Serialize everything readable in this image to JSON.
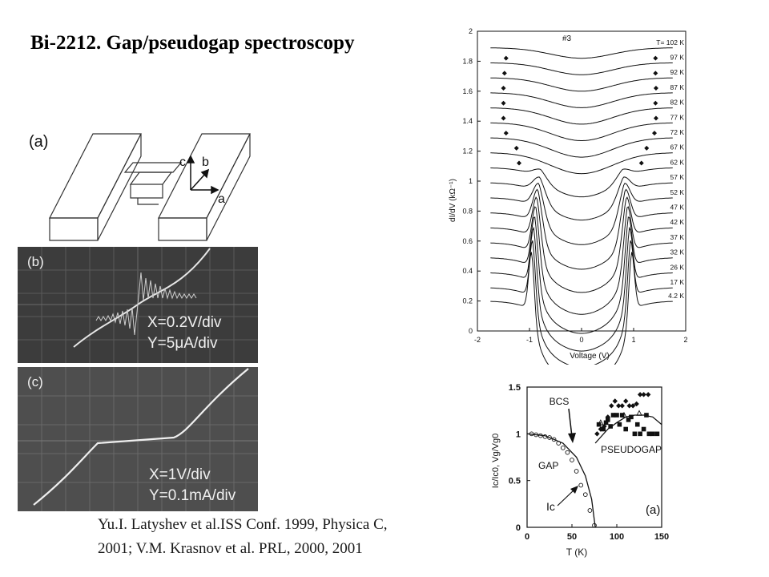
{
  "slide": {
    "title": "Bi-2212.  Gap/pseudogap spectroscopy",
    "citation_line1": "Yu.I. Latyshev et al.ISS Conf. 1999, Physica C,",
    "citation_line2": "2001; V.M. Krasnov et al. PRL, 2000, 2001"
  },
  "panel_a": {
    "label": "(a)",
    "axes": {
      "c": "c",
      "b": "b",
      "a": "a"
    }
  },
  "panel_b": {
    "label": "(b)",
    "scale_x": "X=0.2V/div",
    "scale_y": "Y=5μA/div"
  },
  "panel_c": {
    "label": "(c)",
    "scale_x": "X=1V/div",
    "scale_y": "Y=0.1mA/div"
  },
  "chart_data": [
    {
      "type": "line",
      "annotation": "#3",
      "xlabel": "Voltage (V)",
      "ylabel": "dI/dV (kΩ⁻¹)",
      "xlim": [
        -2,
        2
      ],
      "ylim": [
        0,
        2
      ],
      "xticks": [
        "-2",
        "-1",
        "0",
        "1",
        "2"
      ],
      "yticks": [
        "0",
        "0.2",
        "0.4",
        "0.6",
        "0.8",
        "1",
        "1.2",
        "1.4",
        "1.6",
        "1.8",
        "2"
      ],
      "grid": false,
      "series_labels": [
        "T= 102 K",
        "97 K",
        "92 K",
        "87 K",
        "82 K",
        "77 K",
        "72 K",
        "67 K",
        "62 K",
        "57 K",
        "52 K",
        "47 K",
        "42 K",
        "37 K",
        "32 K",
        "26 K",
        "17 K",
        "4.2 K"
      ],
      "series_temperatures_K": [
        102,
        97,
        92,
        87,
        82,
        77,
        72,
        67,
        62,
        57,
        52,
        47,
        42,
        37,
        32,
        26,
        17,
        4.2
      ],
      "series_offsets": [
        1.89,
        1.79,
        1.69,
        1.59,
        1.49,
        1.39,
        1.29,
        1.19,
        1.09,
        0.99,
        0.89,
        0.79,
        0.69,
        0.59,
        0.49,
        0.39,
        0.29,
        0.2
      ],
      "gap_peak_voltage": [
        0,
        0,
        0,
        0,
        0,
        0,
        0,
        0,
        0.78,
        0.8,
        0.82,
        0.84,
        0.86,
        0.88,
        0.9,
        0.92,
        0.94,
        0.96
      ],
      "gap_peak_height": [
        0,
        0,
        0,
        0,
        0,
        0,
        0,
        0,
        0.05,
        0.1,
        0.16,
        0.22,
        0.27,
        0.31,
        0.34,
        0.36,
        0.37,
        0.38
      ],
      "pseudogap_depth": [
        0.07,
        0.08,
        0.09,
        0.1,
        0.11,
        0.12,
        0.13,
        0.14,
        0.15,
        0.16,
        0.17,
        0.18,
        0.19,
        0.2,
        0.2,
        0.2,
        0.2,
        0.2
      ],
      "pseudogap_markers": [
        {
          "T": 97,
          "v_left": -1.45,
          "v_right": 1.42
        },
        {
          "T": 92,
          "v_left": -1.48,
          "v_right": 1.42
        },
        {
          "T": 87,
          "v_left": -1.5,
          "v_right": 1.43
        },
        {
          "T": 82,
          "v_left": -1.5,
          "v_right": 1.42
        },
        {
          "T": 77,
          "v_left": -1.5,
          "v_right": 1.43
        },
        {
          "T": 72,
          "v_left": -1.45,
          "v_right": 1.4
        },
        {
          "T": 67,
          "v_left": -1.25,
          "v_right": 1.25
        },
        {
          "T": 62,
          "v_left": -1.2,
          "v_right": 1.15
        }
      ]
    },
    {
      "type": "scatter",
      "label": "(a)",
      "xlabel": "T (K)",
      "ylabel": "Ic/Ic0, Vg/Vg0",
      "xlim": [
        0,
        150
      ],
      "ylim": [
        0,
        1.5
      ],
      "xticks": [
        "0",
        "50",
        "100",
        "150"
      ],
      "yticks": [
        "0",
        "0.5",
        "1",
        "1.5"
      ],
      "annotations": [
        "BCS",
        "GAP",
        "PSEUDOGAP",
        "Ic"
      ],
      "series": [
        {
          "name": "GAP",
          "marker": "circle",
          "x": [
            5,
            10,
            15,
            20,
            25,
            30,
            35,
            40,
            45,
            50,
            55,
            60,
            65,
            70,
            75
          ],
          "y": [
            1.0,
            0.99,
            0.98,
            0.97,
            0.96,
            0.94,
            0.9,
            0.85,
            0.8,
            0.72,
            0.6,
            0.45,
            0.35,
            0.18,
            0.02
          ]
        },
        {
          "name": "PSEUDOGAP",
          "marker": "square",
          "x": [
            80,
            85,
            88,
            90,
            93,
            96,
            100,
            103,
            106,
            110,
            113,
            116,
            120,
            123,
            126,
            130,
            133,
            136,
            140,
            145
          ],
          "y": [
            1.1,
            1.05,
            1.12,
            1.15,
            1.08,
            1.2,
            1.2,
            1.1,
            1.2,
            1.05,
            1.15,
            1.18,
            1.0,
            1.1,
            1.0,
            1.05,
            1.2,
            1.0,
            1.0,
            1.0
          ]
        },
        {
          "name": "PSEUDOGAP",
          "marker": "diamond",
          "x": [
            78,
            82,
            86,
            90,
            94,
            98,
            102,
            106,
            110,
            114,
            118,
            122,
            126,
            130,
            135
          ],
          "y": [
            1.0,
            1.05,
            1.08,
            1.18,
            1.3,
            1.35,
            1.3,
            1.3,
            1.35,
            1.3,
            1.3,
            1.32,
            1.42,
            1.42,
            1.42
          ]
        },
        {
          "name": "PSEUDOGAP",
          "marker": "triangle",
          "x": [
            82,
            108,
            125
          ],
          "y": [
            1.12,
            1.2,
            1.22
          ]
        },
        {
          "name": "BCS",
          "marker": "line",
          "x": [
            0,
            20,
            40,
            55,
            65,
            72,
            76
          ],
          "y": [
            1.0,
            0.98,
            0.9,
            0.75,
            0.55,
            0.3,
            0.0
          ]
        },
        {
          "name": "Ic",
          "marker": "line",
          "x": [
            76,
            90,
            100,
            110,
            120,
            130,
            140,
            150
          ],
          "y": [
            0.9,
            1.05,
            1.12,
            1.18,
            1.2,
            1.2,
            1.18,
            1.1
          ]
        }
      ]
    }
  ]
}
